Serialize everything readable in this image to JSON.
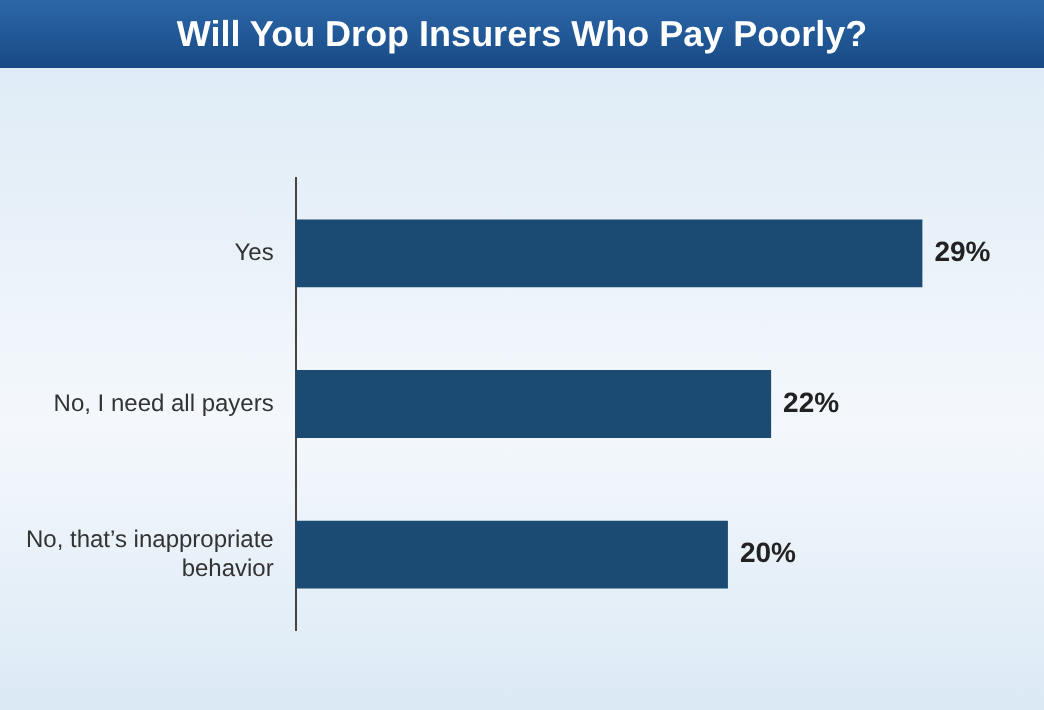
{
  "chart_data": {
    "type": "bar",
    "orientation": "horizontal",
    "title": "Will You Drop Insurers Who Pay Poorly?",
    "categories": [
      "Yes",
      "No, I need all payers",
      "No, that’s inappropriate behavior"
    ],
    "values": [
      29,
      22,
      20
    ],
    "value_labels": [
      "29%",
      "22%",
      "20%"
    ],
    "color": "#1b4a72"
  }
}
